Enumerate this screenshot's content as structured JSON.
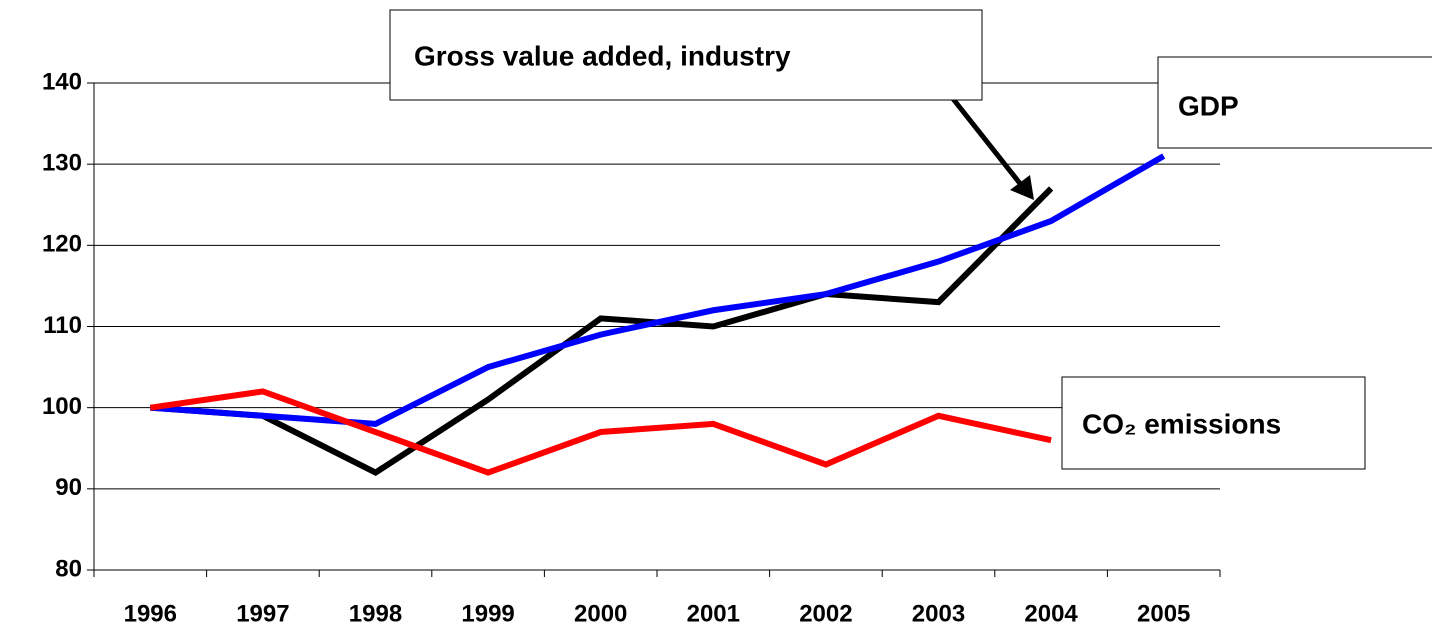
{
  "chart_data": {
    "type": "line",
    "categories": [
      "1996",
      "1997",
      "1998",
      "1999",
      "2000",
      "2001",
      "2002",
      "2003",
      "2004",
      "2005"
    ],
    "series": [
      {
        "name": "Gross value added, industry",
        "color": "#000000",
        "values": [
          100,
          99,
          92,
          101,
          111,
          110,
          114,
          113,
          127,
          null
        ]
      },
      {
        "name": "GDP",
        "color": "#0000ff",
        "values": [
          100,
          99,
          98,
          105,
          109,
          112,
          114,
          118,
          123,
          131
        ]
      },
      {
        "name": "CO₂ emissions",
        "color": "#ff0000",
        "values": [
          100,
          102,
          97,
          92,
          97,
          98,
          93,
          99,
          96,
          null
        ]
      }
    ],
    "ylim": [
      80,
      140
    ],
    "yticks": [
      80,
      90,
      100,
      110,
      120,
      130,
      140
    ],
    "grid": true
  }
}
